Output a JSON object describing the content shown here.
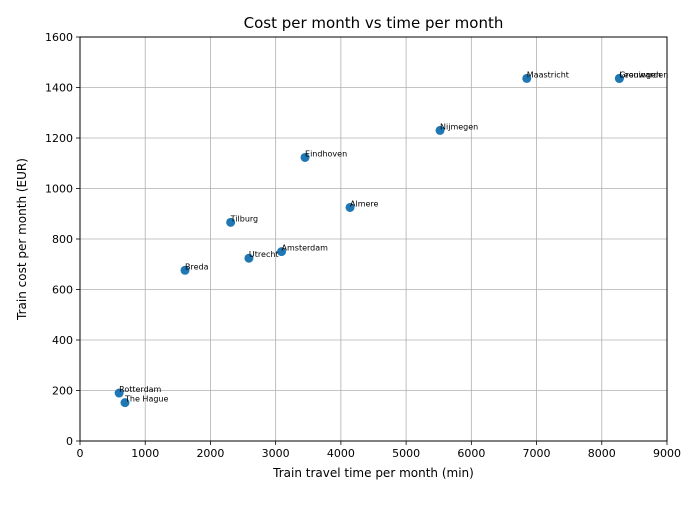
{
  "chart_data": {
    "type": "scatter",
    "title": "Cost per month vs time per month",
    "xlabel": "Train travel time per month (min)",
    "ylabel": "Train cost per month (EUR)",
    "xlim": [
      0,
      9000
    ],
    "ylim": [
      0,
      1600
    ],
    "xticks": [
      0,
      1000,
      2000,
      3000,
      4000,
      5000,
      6000,
      7000,
      8000,
      9000
    ],
    "yticks": [
      0,
      200,
      400,
      600,
      800,
      1000,
      1200,
      1400,
      1600
    ],
    "grid": true,
    "marker_color": "#1f77b4",
    "points": [
      {
        "label": "Rotterdam",
        "x": 600,
        "y": 190
      },
      {
        "label": "The Hague",
        "x": 690,
        "y": 152
      },
      {
        "label": "Breda",
        "x": 1610,
        "y": 676
      },
      {
        "label": "Tilburg",
        "x": 2310,
        "y": 866
      },
      {
        "label": "Utrecht",
        "x": 2590,
        "y": 724
      },
      {
        "label": "Amsterdam",
        "x": 3090,
        "y": 750
      },
      {
        "label": "Eindhoven",
        "x": 3450,
        "y": 1123
      },
      {
        "label": "Almere",
        "x": 4140,
        "y": 925
      },
      {
        "label": "Nijmegen",
        "x": 5520,
        "y": 1230
      },
      {
        "label": "Maastricht",
        "x": 6850,
        "y": 1436
      },
      {
        "label": "Leeuwarden",
        "x": 8270,
        "y": 1436
      },
      {
        "label": "Groningen",
        "x": 8270,
        "y": 1436
      }
    ]
  }
}
